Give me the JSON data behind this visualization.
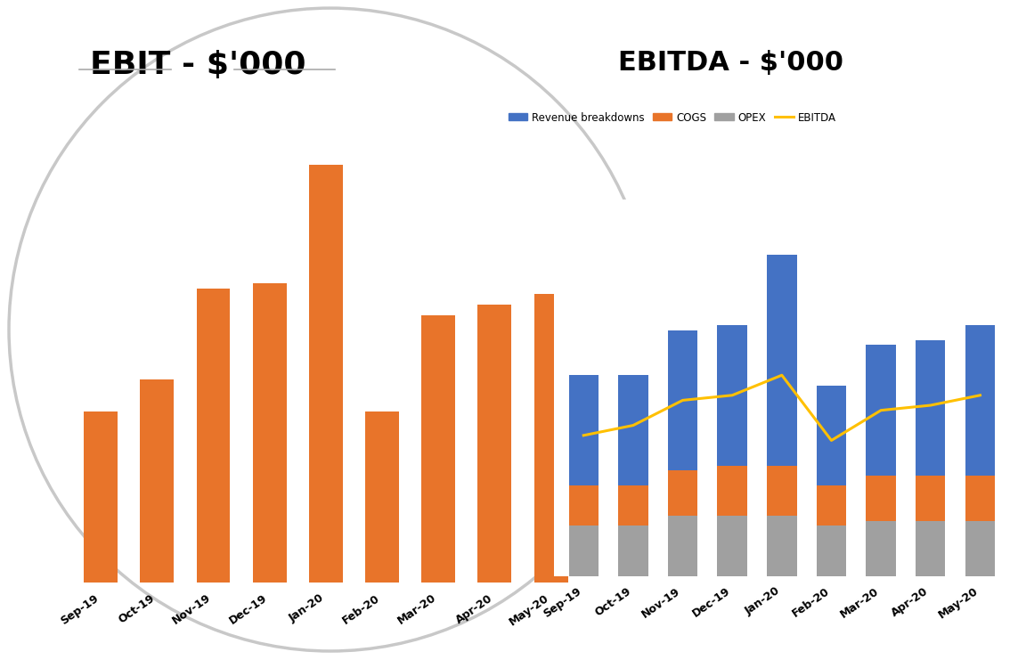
{
  "ebit_categories": [
    "Sep-19",
    "Oct-19",
    "Nov-19",
    "Dec-19",
    "Jan-20",
    "Feb-20",
    "Mar-20",
    "Apr-20",
    "May-20"
  ],
  "ebit_values": [
    32,
    38,
    55,
    56,
    78,
    32,
    50,
    52,
    54
  ],
  "ebit_color": "#E8742A",
  "ebit_title": "EBIT - $'000",
  "ebitda_categories": [
    "Sep-19",
    "Oct-19",
    "Nov-19",
    "Dec-19",
    "Jan-20",
    "Feb-20",
    "Mar-20",
    "Apr-20",
    "May-20"
  ],
  "ebitda_opex": [
    10,
    10,
    12,
    12,
    12,
    10,
    11,
    11,
    11
  ],
  "ebitda_cogs": [
    8,
    8,
    9,
    10,
    10,
    8,
    9,
    9,
    9
  ],
  "ebitda_revenue": [
    22,
    22,
    28,
    28,
    42,
    20,
    26,
    27,
    30
  ],
  "ebitda_line": [
    28,
    30,
    35,
    36,
    40,
    27,
    33,
    34,
    36
  ],
  "ebitda_title": "EBITDA - $'000",
  "revenue_color": "#4472C4",
  "cogs_color": "#E8742A",
  "opex_color": "#A0A0A0",
  "ebitda_line_color": "#FFC000",
  "grid_color": "#CCCCCC",
  "circle_color": "#C8C8C8",
  "bg_color": "#FFFFFF",
  "ebit_title_fontsize": 26,
  "ebitda_title_fontsize": 22,
  "axis_fontsize": 9
}
